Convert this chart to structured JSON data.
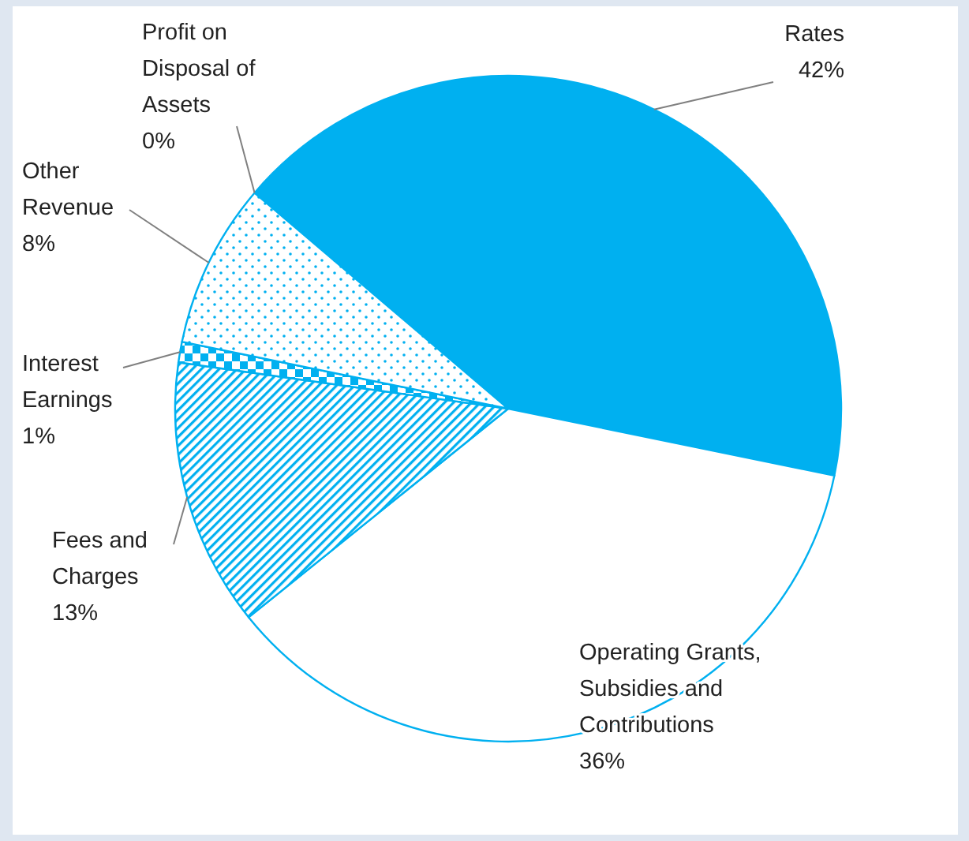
{
  "chart_data": {
    "type": "pie",
    "categories": [
      "Rates",
      "Operating Grants, Subsidies and Contributions",
      "Fees and Charges",
      "Interest Earnings",
      "Other Revenue",
      "Profit on Disposal of Assets"
    ],
    "values": [
      42,
      36,
      13,
      1,
      8,
      0
    ],
    "value_labels": [
      "42%",
      "36%",
      "13%",
      "1%",
      "8%",
      "0%"
    ],
    "colors": [
      "#00b0f0",
      "#ffffff",
      "#00b0f0",
      "#00b0f0",
      "#00b0f0",
      "#00b0f0"
    ]
  }
}
